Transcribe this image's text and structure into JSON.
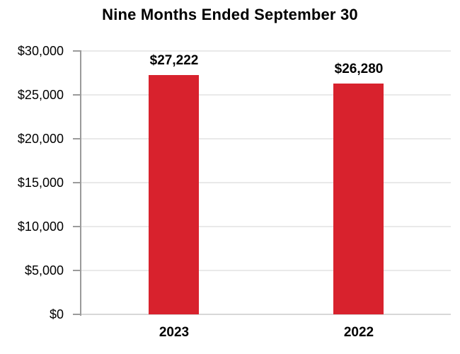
{
  "chart_data": {
    "type": "bar",
    "title": "Nine Months Ended September 30",
    "categories": [
      "2023",
      "2022"
    ],
    "values": [
      27222,
      26280
    ],
    "value_labels": [
      "$27,222",
      "$26,280"
    ],
    "ylim": [
      0,
      30000
    ],
    "ytick_interval": 5000,
    "ytick_labels": [
      "$30,000",
      "$25,000",
      "$20,000",
      "$15,000",
      "$10,000",
      "$5,000",
      "$0"
    ],
    "grid": true,
    "legend": false,
    "colors": {
      "bar": "#D8222D",
      "gridline": "#E9E9E9",
      "baseline": "#D8D8D8",
      "axis": "#9B9B9B",
      "text": "#000000"
    }
  }
}
